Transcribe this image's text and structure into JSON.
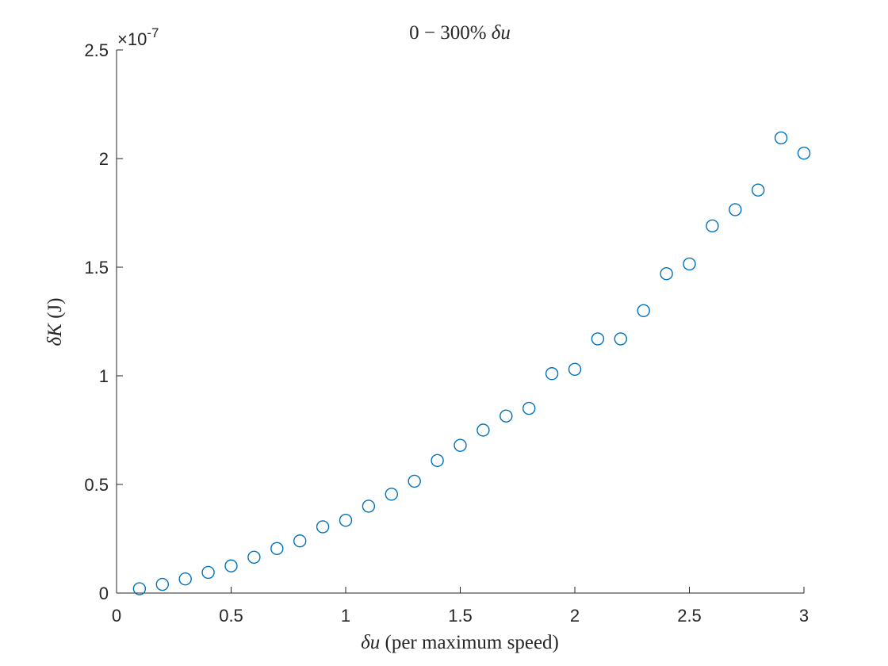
{
  "chart_data": {
    "type": "scatter",
    "title": {
      "prefix": "0 − 300% ",
      "var": "δu"
    },
    "xlabel": {
      "var": "δu",
      "rest": " (per maximum speed)"
    },
    "ylabel": {
      "var": "δK",
      "rest": " (J)"
    },
    "xlim": [
      0,
      3
    ],
    "ylim": [
      0,
      2.5
    ],
    "y_exponent": {
      "base": "×10",
      "power": "-7"
    },
    "grid": false,
    "legend": "none",
    "marker": "open-circle",
    "color": "#0072BD",
    "x_ticks": [
      "0",
      "0.5",
      "1",
      "1.5",
      "2",
      "2.5",
      "3"
    ],
    "y_ticks": [
      "0",
      "0.5",
      "1",
      "1.5",
      "2",
      "2.5"
    ],
    "series": [
      {
        "x": [
          0.1,
          0.2,
          0.3,
          0.4,
          0.5,
          0.6,
          0.7,
          0.8,
          0.9,
          1.0,
          1.1,
          1.2,
          1.3,
          1.4,
          1.5,
          1.6,
          1.7,
          1.8,
          1.9,
          2.0,
          2.1,
          2.2,
          2.3,
          2.4,
          2.5,
          2.6,
          2.7,
          2.8,
          2.9,
          3.0
        ],
        "y": [
          0.02,
          0.04,
          0.065,
          0.095,
          0.125,
          0.165,
          0.205,
          0.24,
          0.305,
          0.335,
          0.4,
          0.455,
          0.515,
          0.61,
          0.68,
          0.75,
          0.815,
          0.85,
          1.01,
          1.03,
          1.17,
          1.17,
          1.3,
          1.47,
          1.515,
          1.69,
          1.765,
          1.855,
          2.095,
          2.025
        ]
      }
    ]
  }
}
